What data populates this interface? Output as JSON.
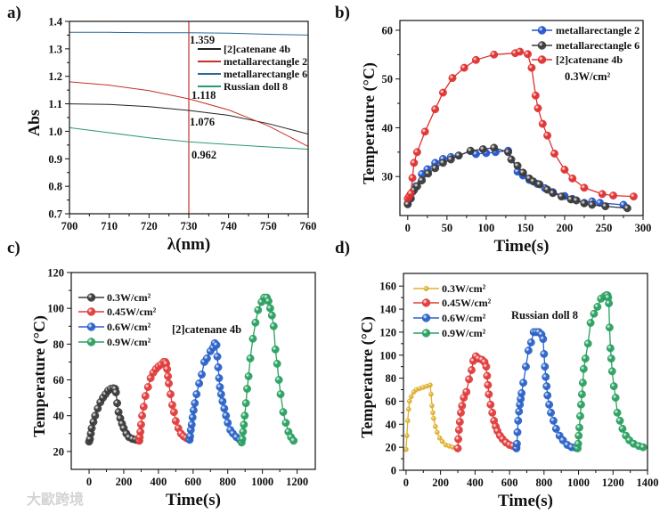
{
  "watermark": "大歐跨境",
  "chart_data": [
    {
      "panel_label": "a)",
      "type": "line",
      "xlabel": "λ(nm)",
      "ylabel": "Abs",
      "xlim": [
        700,
        760
      ],
      "ylim": [
        0.7,
        1.4
      ],
      "xticks": [
        700,
        710,
        720,
        730,
        740,
        750,
        760
      ],
      "yticks": [
        0.7,
        0.8,
        0.9,
        1.0,
        1.1,
        1.2,
        1.3,
        1.4
      ],
      "ytick_decimals": 1,
      "vline": {
        "x": 730,
        "color": "#c8302a"
      },
      "series": [
        {
          "name": "[2]catenane 4b",
          "color": "#222222",
          "x": [
            700,
            710,
            720,
            730,
            740,
            750,
            760
          ],
          "y": [
            1.1,
            1.098,
            1.09,
            1.076,
            1.058,
            1.028,
            0.99
          ]
        },
        {
          "name": "metallarectangle 2",
          "color": "#c8302a",
          "x": [
            700,
            710,
            720,
            730,
            740,
            750,
            760
          ],
          "y": [
            1.18,
            1.168,
            1.148,
            1.118,
            1.078,
            1.02,
            0.945
          ]
        },
        {
          "name": "metallarectangle 6",
          "color": "#2a6a9a",
          "x": [
            700,
            710,
            720,
            730,
            740,
            750,
            760
          ],
          "y": [
            1.36,
            1.36,
            1.359,
            1.359,
            1.357,
            1.353,
            1.35
          ]
        },
        {
          "name": "Russian doll 8",
          "color": "#2a9a6a",
          "x": [
            700,
            710,
            720,
            730,
            740,
            750,
            760
          ],
          "y": [
            1.013,
            0.995,
            0.976,
            0.962,
            0.952,
            0.943,
            0.935
          ]
        }
      ],
      "annotations": [
        "1.359",
        "1.118",
        "1.076",
        "0.962"
      ]
    },
    {
      "panel_label": "b)",
      "type": "line",
      "xlabel": "Time(s)",
      "ylabel": "Temperature (°C)",
      "xlim": [
        -10,
        300
      ],
      "ylim": [
        22,
        62
      ],
      "xticks": [
        0,
        50,
        100,
        150,
        200,
        250,
        300
      ],
      "yticks": [
        30,
        40,
        50,
        60
      ],
      "ytick_decimals": 0,
      "series": [
        {
          "name": "metallarectangle 2",
          "color": "#2255cc",
          "x": [
            0,
            3,
            6,
            10,
            18,
            25,
            35,
            45,
            55,
            65,
            80,
            87,
            100,
            112,
            128,
            140,
            147,
            155,
            165,
            175,
            185,
            200,
            210,
            225,
            235,
            245,
            275
          ],
          "y": [
            24.5,
            25.5,
            26.8,
            28,
            30.5,
            31.5,
            32.8,
            33.6,
            34,
            34.3,
            35.2,
            34.6,
            34.8,
            35,
            35.3,
            31,
            30.2,
            29.3,
            28.5,
            27.6,
            26.8,
            26,
            25.4,
            24.6,
            24.9,
            24.6,
            24.2
          ]
        },
        {
          "name": "metallarectangle 6",
          "color": "#3a3a3a",
          "x": [
            0,
            4,
            8,
            12,
            18,
            26,
            35,
            45,
            55,
            65,
            80,
            96,
            110,
            128,
            132,
            140,
            147,
            155,
            160,
            168,
            178,
            185,
            196,
            208,
            215,
            225,
            235,
            252,
            280
          ],
          "y": [
            24.3,
            25.5,
            27.2,
            28,
            29.2,
            30.6,
            31.7,
            32.8,
            33.5,
            34.3,
            35.3,
            35.6,
            35.9,
            35,
            33.5,
            32.2,
            30.8,
            29.6,
            29,
            28.4,
            27.3,
            26.6,
            25.9,
            25.3,
            25.1,
            24.5,
            24.2,
            23.9,
            23.5
          ]
        },
        {
          "name": "[2]catenane 4b",
          "color": "#e03030",
          "x": [
            0,
            2,
            4,
            6,
            8,
            12,
            22,
            35,
            45,
            57,
            72,
            87,
            110,
            137,
            143,
            153,
            158,
            163,
            166,
            172,
            178,
            187,
            200,
            210,
            225,
            248,
            262,
            288
          ],
          "y": [
            25.5,
            26,
            26.5,
            29.7,
            32.8,
            35,
            39.2,
            43.8,
            47.2,
            50.2,
            52.3,
            53.9,
            55,
            55.3,
            55.6,
            55.1,
            52.3,
            46.6,
            44,
            40.8,
            38.4,
            34.7,
            31.4,
            29.6,
            27.7,
            26.4,
            26.1,
            25.9
          ]
        }
      ],
      "annotations": [
        "0.3W/cm²"
      ]
    },
    {
      "panel_label": "c)",
      "type": "line",
      "xlabel": "Time(s)",
      "ylabel": "Temperature (°C)",
      "xlim": [
        -103,
        1305
      ],
      "ylim": [
        10,
        120
      ],
      "xticks": [
        0,
        200,
        400,
        600,
        800,
        1000,
        1200
      ],
      "yticks": [
        20,
        40,
        60,
        80,
        100,
        120
      ],
      "ytick_decimals": 0,
      "series": [
        {
          "name": "0.3W/cm²",
          "color": "#3a3a3a",
          "x": [
            0,
            5,
            10,
            15,
            25,
            35,
            50,
            65,
            80,
            95,
            110,
            125,
            140,
            150,
            155,
            162,
            170,
            180,
            190,
            200,
            215,
            230,
            250,
            270,
            285
          ],
          "y": [
            25.5,
            27,
            30,
            33,
            36.5,
            40,
            44,
            47.5,
            50,
            52,
            54,
            55,
            55.3,
            55,
            53,
            47,
            42,
            38.5,
            35.5,
            33,
            30,
            28,
            27,
            26.5,
            26.2
          ]
        },
        {
          "name": "0.45W/cm²",
          "color": "#e03c3c",
          "x": [
            290,
            292,
            296,
            300,
            306,
            315,
            325,
            340,
            355,
            370,
            385,
            400,
            415,
            430,
            440,
            445,
            450,
            455,
            460,
            470,
            480,
            490,
            500,
            515,
            530,
            545,
            560,
            575
          ],
          "y": [
            26,
            28,
            31,
            35,
            40,
            45,
            51,
            56,
            61,
            64,
            66,
            67.5,
            68.5,
            70,
            70,
            69,
            66,
            62,
            58,
            52,
            46,
            42,
            37,
            33,
            30,
            28.5,
            27.5,
            27
          ]
        },
        {
          "name": "0.6W/cm²",
          "color": "#2a62c8",
          "x": [
            580,
            583,
            587,
            592,
            597,
            603,
            610,
            620,
            635,
            650,
            665,
            680,
            700,
            715,
            725,
            735,
            740,
            745,
            750,
            755,
            762,
            770,
            780,
            790,
            800,
            815,
            830,
            850,
            870
          ],
          "y": [
            26.5,
            28.5,
            32,
            35,
            39,
            43,
            47,
            52,
            58,
            63,
            70,
            72,
            76,
            78,
            80.5,
            79.5,
            73,
            67,
            61,
            56,
            52,
            48,
            44,
            40,
            36,
            32,
            30,
            28,
            26.5
          ]
        },
        {
          "name": "0.9W/cm²",
          "color": "#2aa060",
          "x": [
            880,
            884,
            888,
            893,
            898,
            905,
            912,
            920,
            930,
            945,
            960,
            975,
            995,
            1010,
            1025,
            1035,
            1045,
            1055,
            1065,
            1075,
            1085,
            1095,
            1105,
            1120,
            1135,
            1150,
            1165,
            1180
          ],
          "y": [
            25,
            27,
            31,
            35,
            40,
            47,
            55,
            62,
            72,
            83,
            92,
            99,
            103.5,
            106,
            106,
            104,
            100,
            96,
            90,
            77,
            69,
            60,
            52,
            42,
            36,
            31,
            28,
            26
          ]
        }
      ],
      "annotations": [
        "[2]catenane 4b"
      ]
    },
    {
      "panel_label": "d)",
      "type": "line",
      "xlabel": "Time(s)",
      "ylabel": "Temperature (°C)",
      "xlim": [
        -15,
        1400
      ],
      "ylim": [
        0,
        171
      ],
      "xticks": [
        0,
        200,
        400,
        600,
        800,
        1000,
        1200,
        1400
      ],
      "yticks": [
        0,
        20,
        40,
        60,
        80,
        100,
        120,
        140,
        160
      ],
      "ytick_decimals": 0,
      "series": [
        {
          "name": "0.3W/cm²",
          "color": "#e0b030",
          "small": true,
          "x": [
            0,
            5,
            10,
            15,
            20,
            30,
            45,
            60,
            80,
            100,
            120,
            140,
            145,
            150,
            155,
            160,
            170,
            180,
            195,
            210,
            230,
            250,
            270,
            290
          ],
          "y": [
            18,
            30,
            43,
            53,
            60,
            64,
            68,
            70,
            71,
            72,
            73,
            74,
            66,
            56,
            50,
            45,
            38,
            33,
            28,
            25,
            22,
            21,
            20,
            19.5
          ]
        },
        {
          "name": "0.45W/cm²",
          "color": "#e03c3c",
          "x": [
            300,
            303,
            307,
            312,
            318,
            325,
            335,
            350,
            365,
            380,
            390,
            405,
            420,
            440,
            455,
            465,
            470,
            475,
            480,
            490,
            500,
            510,
            520,
            530,
            545,
            560,
            580,
            600,
            620,
            640
          ],
          "y": [
            19,
            27,
            35,
            42,
            50,
            56,
            63,
            68,
            79,
            87,
            95,
            99,
            97,
            96,
            94,
            90,
            82,
            74,
            66,
            57,
            50,
            43,
            38,
            34,
            30,
            27,
            24,
            22,
            21,
            20
          ]
        },
        {
          "name": "0.6W/cm²",
          "color": "#2a62c8",
          "x": [
            640,
            643,
            646,
            650,
            655,
            660,
            665,
            670,
            680,
            695,
            710,
            725,
            740,
            755,
            770,
            785,
            795,
            800,
            805,
            810,
            815,
            820,
            830,
            840,
            855,
            870,
            890,
            910,
            935,
            960,
            985
          ],
          "y": [
            19,
            23,
            33,
            43,
            51,
            57,
            62,
            67,
            76,
            90,
            104,
            111,
            120,
            120,
            120,
            118,
            114,
            101,
            90,
            81,
            73,
            65,
            57,
            50,
            43,
            36,
            30,
            26,
            22,
            20,
            19.5
          ]
        },
        {
          "name": "0.9W/cm²",
          "color": "#2aa060",
          "x": [
            995,
            998,
            1001,
            1005,
            1010,
            1015,
            1020,
            1025,
            1030,
            1040,
            1055,
            1070,
            1090,
            1110,
            1130,
            1150,
            1160,
            1168,
            1172,
            1176,
            1180,
            1185,
            1190,
            1195,
            1205,
            1215,
            1225,
            1240,
            1255,
            1275,
            1295,
            1320,
            1350,
            1375
          ],
          "y": [
            19,
            23,
            30,
            37,
            47,
            57,
            66,
            76,
            88,
            97,
            110,
            128,
            136,
            142,
            149,
            151,
            152,
            152,
            150,
            145,
            124,
            106,
            97,
            86,
            73,
            63,
            50,
            43,
            36,
            30,
            26,
            23,
            21,
            20
          ]
        }
      ],
      "annotations": [
        "Russian doll 8"
      ]
    }
  ]
}
